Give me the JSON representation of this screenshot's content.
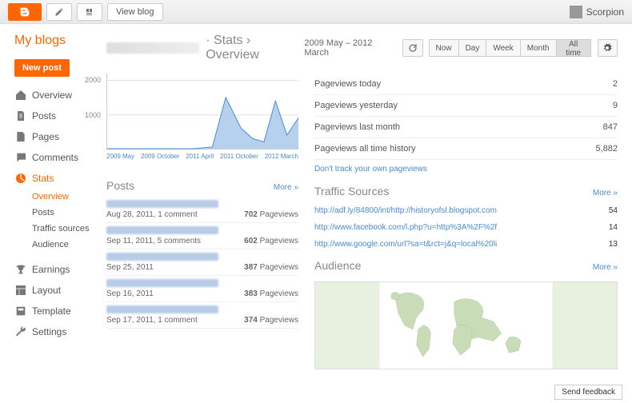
{
  "topbar": {
    "view_blog": "View blog",
    "user_name": "Scorpion"
  },
  "sidebar": {
    "my_blogs": "My blogs",
    "new_post": "New post",
    "items": [
      {
        "label": "Overview",
        "icon": "home"
      },
      {
        "label": "Posts",
        "icon": "doc"
      },
      {
        "label": "Pages",
        "icon": "page"
      },
      {
        "label": "Comments",
        "icon": "comment"
      },
      {
        "label": "Stats",
        "icon": "stats",
        "active": true
      }
    ],
    "sub_items": [
      {
        "label": "Overview",
        "active": true
      },
      {
        "label": "Posts"
      },
      {
        "label": "Traffic sources"
      },
      {
        "label": "Audience"
      }
    ],
    "items2": [
      {
        "label": "Earnings",
        "icon": "trophy"
      },
      {
        "label": "Layout",
        "icon": "layout"
      },
      {
        "label": "Template",
        "icon": "template"
      },
      {
        "label": "Settings",
        "icon": "wrench"
      }
    ]
  },
  "header": {
    "breadcrumb_dot": "·",
    "breadcrumb_stats": "Stats",
    "breadcrumb_sep": "›",
    "breadcrumb_page": "Overview",
    "date_range": "2009 May – 2012 March",
    "periods": [
      "Now",
      "Day",
      "Week",
      "Month",
      "All time"
    ],
    "active_period": "All time"
  },
  "chart": {
    "type": "area",
    "yticks": [
      "2000",
      "1000"
    ],
    "ylim": [
      0,
      2200
    ],
    "xticks": [
      "2009 May",
      "2009 October",
      "2011 April",
      "2011 October",
      "2012 March"
    ],
    "fill_color": "#a3c5e8",
    "line_color": "#4a8ad4",
    "grid_color": "#e0e0e0",
    "points_x": [
      0,
      0.45,
      0.55,
      0.62,
      0.7,
      0.76,
      0.82,
      0.88,
      0.94,
      1.0
    ],
    "points_y": [
      0,
      0,
      50,
      1500,
      600,
      300,
      200,
      1400,
      400,
      900
    ]
  },
  "stats": [
    {
      "label": "Pageviews today",
      "value": "2"
    },
    {
      "label": "Pageviews yesterday",
      "value": "9"
    },
    {
      "label": "Pageviews last month",
      "value": "847"
    },
    {
      "label": "Pageviews all time history",
      "value": "5,882"
    }
  ],
  "dont_track": "Don't track your own pageviews",
  "sections": {
    "posts_title": "Posts",
    "traffic_title": "Traffic Sources",
    "audience_title": "Audience",
    "more": "More »"
  },
  "posts": [
    {
      "date": "Aug 28, 2011, 1 comment",
      "views": "702",
      "views_label": "Pageviews"
    },
    {
      "date": "Sep 11, 2011, 5 comments",
      "views": "602",
      "views_label": "Pageviews"
    },
    {
      "date": "Sep 25, 2011",
      "views": "387",
      "views_label": "Pageviews"
    },
    {
      "date": "Sep 16, 2011",
      "views": "383",
      "views_label": "Pageviews"
    },
    {
      "date": "Sep 17, 2011, 1 comment",
      "views": "374",
      "views_label": "Pageviews"
    }
  ],
  "traffic": [
    {
      "url": "http://adf.ly/84800/int/http://historyofsl.blogspot.com",
      "count": "54"
    },
    {
      "url": "http://www.facebook.com/l.php?u=http%3A%2F%2f",
      "count": "14"
    },
    {
      "url": "http://www.google.com/url?sa=t&rct=j&q=local%20li",
      "count": "13"
    }
  ],
  "map": {
    "land_color": "#c8dcb8",
    "ocean_color": "#ffffff",
    "border_color": "#a0b090"
  },
  "feedback": "Send feedback"
}
